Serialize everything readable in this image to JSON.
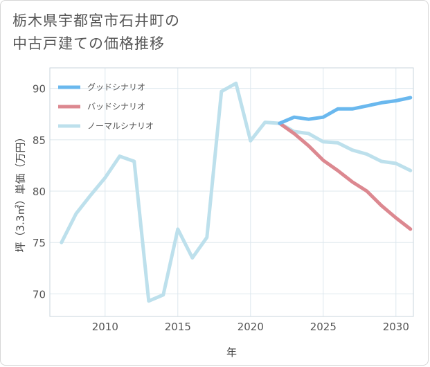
{
  "title_lines": [
    "栃木県宇都宮市石井町の",
    "中古戸建ての価格推移"
  ],
  "colors": {
    "good": "#6ab8ee",
    "bad": "#dc8890",
    "normal": "#bde0ec",
    "grid": "#dde7ee"
  },
  "chart_data": {
    "type": "line",
    "title": "栃木県宇都宮市石井町の中古戸建ての価格推移",
    "xlabel": "年",
    "ylabel": "坪（3.3㎡）単価（万円）",
    "xlim": [
      2006.2,
      2031.2
    ],
    "ylim": [
      67.8,
      92
    ],
    "x_ticks": [
      2010,
      2015,
      2020,
      2025,
      2030
    ],
    "y_ticks": [
      70,
      75,
      80,
      85,
      90
    ],
    "grid": true,
    "legend_position": "top-left",
    "series": [
      {
        "name": "グッドシナリオ",
        "color": "#6ab8ee",
        "x": [
          2022,
          2023,
          2024,
          2025,
          2026,
          2027,
          2028,
          2029,
          2030,
          2031
        ],
        "y": [
          86.6,
          87.2,
          87.0,
          87.2,
          88.0,
          88.0,
          88.3,
          88.6,
          88.8,
          89.1
        ]
      },
      {
        "name": "バッドシナリオ",
        "color": "#dc8890",
        "x": [
          2022,
          2023,
          2024,
          2025,
          2026,
          2027,
          2028,
          2029,
          2030,
          2031
        ],
        "y": [
          86.6,
          85.6,
          84.4,
          83.0,
          82.0,
          80.9,
          80.0,
          78.6,
          77.4,
          76.3
        ]
      },
      {
        "name": "ノーマルシナリオ",
        "color": "#bde0ec",
        "x": [
          2007,
          2008,
          2009,
          2010,
          2011,
          2012,
          2013,
          2014,
          2015,
          2016,
          2017,
          2018,
          2019,
          2020,
          2021,
          2022,
          2023,
          2024,
          2025,
          2026,
          2027,
          2028,
          2029,
          2030,
          2031
        ],
        "y": [
          75.0,
          77.8,
          79.6,
          81.3,
          83.4,
          82.9,
          69.3,
          69.9,
          76.3,
          73.5,
          75.5,
          89.7,
          90.5,
          84.9,
          86.7,
          86.6,
          85.8,
          85.6,
          84.8,
          84.7,
          84.0,
          83.6,
          82.9,
          82.7,
          82.0
        ]
      }
    ]
  }
}
